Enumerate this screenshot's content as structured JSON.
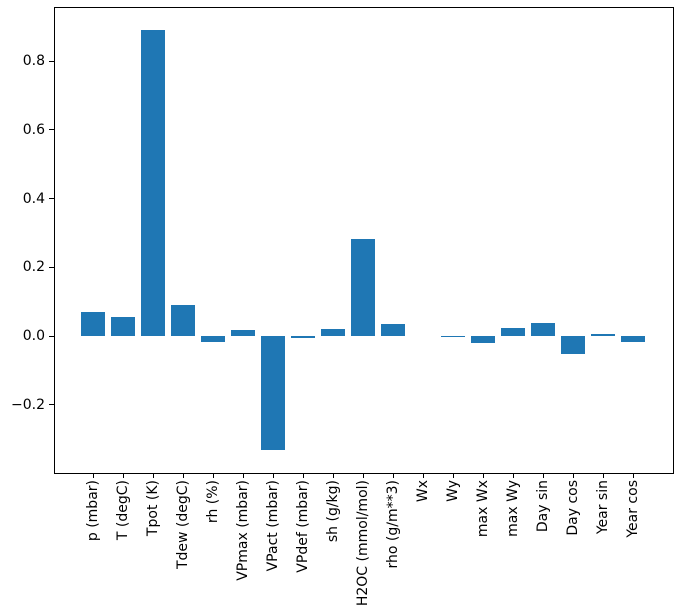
{
  "figure": {
    "title": "",
    "background_color": "#ffffff",
    "spine_color": "#000000"
  },
  "chart_data": {
    "type": "bar",
    "title": "",
    "xlabel": "",
    "ylabel": "",
    "grid": false,
    "legend_position": "none",
    "bar_color": "#1f77b4",
    "categories": [
      "p (mbar)",
      "T (degC)",
      "Tpot (K)",
      "Tdew (degC)",
      "rh (%)",
      "VPmax (mbar)",
      "VPact (mbar)",
      "VPdef (mbar)",
      "sh (g/kg)",
      "H2OC (mmol/mol)",
      "rho (g/m**3)",
      "Wx",
      "Wy",
      "max Wx",
      "max Wy",
      "Day sin",
      "Day cos",
      "Year sin",
      "Year cos"
    ],
    "values": [
      0.07,
      0.055,
      0.89,
      0.091,
      -0.017,
      0.017,
      -0.333,
      -0.005,
      0.019,
      0.282,
      0.035,
      0.001,
      -0.004,
      -0.02,
      0.023,
      0.039,
      -0.052,
      0.005,
      -0.017
    ],
    "yticks": [
      -0.2,
      0.0,
      0.2,
      0.4,
      0.6,
      0.8
    ],
    "ytick_labels": [
      "−0.2",
      "0.0",
      "0.2",
      "0.4",
      "0.6",
      "0.8"
    ],
    "ylim": [
      -0.398,
      0.956
    ]
  }
}
